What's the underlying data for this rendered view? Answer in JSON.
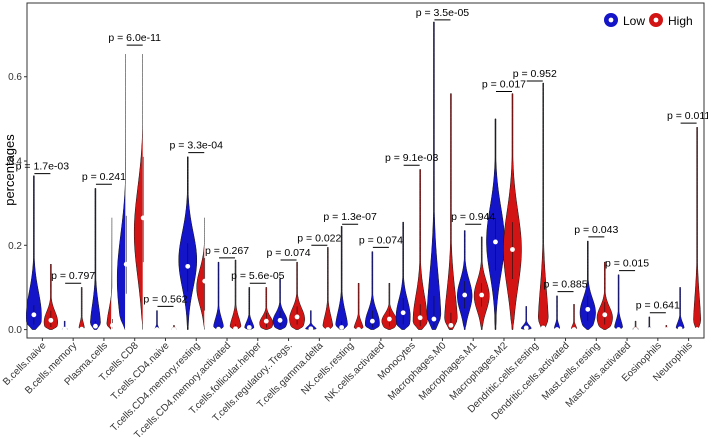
{
  "chart_data": {
    "type": "violin",
    "ylabel": "percentages",
    "xlabel": "",
    "ylim": [
      -0.02,
      0.775
    ],
    "yticks": [
      0.0,
      0.2,
      0.4,
      0.6
    ],
    "ytick_labels": [
      "0.0",
      "0.2",
      "0.4",
      "0.6"
    ],
    "grid": false,
    "legend": {
      "position": "top-right",
      "entries": [
        {
          "name": "Low",
          "color": "#1414c8"
        },
        {
          "name": "High",
          "color": "#d21414"
        }
      ]
    },
    "categories": [
      {
        "name": "B.cells.naive",
        "p": "p = 1.7e-03",
        "bracket": 0.37,
        "low": {
          "max": 0.365,
          "med": 0.035,
          "q1": 0.012,
          "q3": 0.058,
          "mode": 0.032,
          "w": 0.8
        },
        "high": {
          "max": 0.155,
          "med": 0.022,
          "q1": 0.006,
          "q3": 0.045,
          "mode": 0.018,
          "w": 0.72
        }
      },
      {
        "name": "B.cells.memory",
        "p": "p = 0.797",
        "bracket": 0.11,
        "low": {
          "max": 0.02,
          "med": 0.001,
          "q1": 0.0,
          "q3": 0.003,
          "mode": 0.0,
          "w": 0.28
        },
        "high": {
          "max": 0.1,
          "med": 0.001,
          "q1": 0.0,
          "q3": 0.003,
          "mode": 0.0,
          "w": 0.3
        }
      },
      {
        "name": "Plasma.cells",
        "p": "p = 0.241",
        "bracket": 0.345,
        "low": {
          "max": 0.335,
          "med": 0.008,
          "q1": 0.002,
          "q3": 0.02,
          "mode": 0.004,
          "w": 0.55
        },
        "high": {
          "max": 0.27,
          "med": 0.01,
          "q1": 0.003,
          "q3": 0.025,
          "mode": 0.005,
          "w": 0.6
        }
      },
      {
        "name": "T.cells.CD8",
        "p": "p = 6.0e-11",
        "bracket": 0.675,
        "low": {
          "max": 0.665,
          "med": 0.155,
          "q1": 0.085,
          "q3": 0.27,
          "mode": 0.12,
          "w": 0.95
        },
        "high": {
          "max": 0.665,
          "med": 0.265,
          "q1": 0.16,
          "q3": 0.41,
          "mode": 0.23,
          "w": 0.95
        }
      },
      {
        "name": "T.cells.CD4.naive",
        "p": "p = 0.562",
        "bracket": 0.055,
        "low": {
          "max": 0.045,
          "med": 0.0,
          "q1": 0.0,
          "q3": 0.002,
          "mode": 0.0,
          "w": 0.22
        },
        "high": {
          "max": 0.01,
          "med": 0.0,
          "q1": 0.0,
          "q3": 0.001,
          "mode": 0.0,
          "w": 0.25
        }
      },
      {
        "name": "T.cells.CD4.memory.resting",
        "p": "p = 3.3e-04",
        "bracket": 0.42,
        "low": {
          "max": 0.41,
          "med": 0.15,
          "q1": 0.09,
          "q3": 0.205,
          "mode": 0.165,
          "w": 0.95
        },
        "high": {
          "max": 0.27,
          "med": 0.115,
          "q1": 0.045,
          "q3": 0.17,
          "mode": 0.1,
          "w": 0.85
        }
      },
      {
        "name": "T.cells.CD4.memory.activated",
        "p": "p = 0.267",
        "bracket": 0.17,
        "low": {
          "max": 0.16,
          "med": 0.001,
          "q1": 0.0,
          "q3": 0.01,
          "mode": 0.0,
          "w": 0.55
        },
        "high": {
          "max": 0.165,
          "med": 0.002,
          "q1": 0.0,
          "q3": 0.012,
          "mode": 0.001,
          "w": 0.6
        }
      },
      {
        "name": "T.cells.follicular.helper",
        "p": "p = 5.6e-05",
        "bracket": 0.11,
        "low": {
          "max": 0.1,
          "med": 0.005,
          "q1": 0.0,
          "q3": 0.02,
          "mode": 0.002,
          "w": 0.5
        },
        "high": {
          "max": 0.1,
          "med": 0.02,
          "q1": 0.005,
          "q3": 0.04,
          "mode": 0.015,
          "w": 0.7
        }
      },
      {
        "name": "T.cells.regulatory..Tregs.",
        "p": "p = 0.074",
        "bracket": 0.165,
        "low": {
          "max": 0.12,
          "med": 0.022,
          "q1": 0.008,
          "q3": 0.045,
          "mode": 0.02,
          "w": 0.75
        },
        "high": {
          "max": 0.16,
          "med": 0.03,
          "q1": 0.012,
          "q3": 0.055,
          "mode": 0.025,
          "w": 0.8
        }
      },
      {
        "name": "T.cells.gamma.delta",
        "p": "p = 0.022",
        "bracket": 0.2,
        "low": {
          "max": 0.045,
          "med": 0.002,
          "q1": 0.0,
          "q3": 0.008,
          "mode": 0.0,
          "w": 0.6
        },
        "high": {
          "max": 0.195,
          "med": 0.0,
          "q1": 0.0,
          "q3": 0.005,
          "mode": 0.0,
          "w": 0.55
        }
      },
      {
        "name": "NK.cells.resting",
        "p": "p = 1.3e-07",
        "bracket": 0.25,
        "low": {
          "max": 0.245,
          "med": 0.005,
          "q1": 0.0,
          "q3": 0.02,
          "mode": 0.002,
          "w": 0.65
        },
        "high": {
          "max": 0.11,
          "med": 0.0,
          "q1": 0.0,
          "q3": 0.004,
          "mode": 0.0,
          "w": 0.5
        }
      },
      {
        "name": "NK.cells.activated",
        "p": "p = 0.074",
        "bracket": 0.195,
        "low": {
          "max": 0.185,
          "med": 0.02,
          "q1": 0.005,
          "q3": 0.045,
          "mode": 0.015,
          "w": 0.75
        },
        "high": {
          "max": 0.11,
          "med": 0.025,
          "q1": 0.008,
          "q3": 0.05,
          "mode": 0.02,
          "w": 0.8
        }
      },
      {
        "name": "Monocytes",
        "p": "p = 9.1e-03",
        "bracket": 0.39,
        "low": {
          "max": 0.255,
          "med": 0.04,
          "q1": 0.012,
          "q3": 0.075,
          "mode": 0.03,
          "w": 0.75
        },
        "high": {
          "max": 0.38,
          "med": 0.028,
          "q1": 0.008,
          "q3": 0.06,
          "mode": 0.02,
          "w": 0.75
        }
      },
      {
        "name": "Macrophages.M0",
        "p": "p = 3.5e-05",
        "bracket": 0.735,
        "low": {
          "max": 0.73,
          "med": 0.025,
          "q1": 0.005,
          "q3": 0.08,
          "mode": 0.01,
          "w": 0.75
        },
        "high": {
          "max": 0.56,
          "med": 0.01,
          "q1": 0.0,
          "q3": 0.04,
          "mode": 0.003,
          "w": 0.7
        }
      },
      {
        "name": "Macrophages.M1",
        "p": "p = 0.944",
        "bracket": 0.25,
        "low": {
          "max": 0.235,
          "med": 0.082,
          "q1": 0.05,
          "q3": 0.115,
          "mode": 0.08,
          "w": 0.78
        },
        "high": {
          "max": 0.22,
          "med": 0.082,
          "q1": 0.055,
          "q3": 0.11,
          "mode": 0.08,
          "w": 0.8
        }
      },
      {
        "name": "Macrophages.M2",
        "p": "p = 0.017",
        "bracket": 0.565,
        "low": {
          "max": 0.5,
          "med": 0.208,
          "q1": 0.14,
          "q3": 0.265,
          "mode": 0.21,
          "w": 0.95
        },
        "high": {
          "max": 0.56,
          "med": 0.19,
          "q1": 0.12,
          "q3": 0.255,
          "mode": 0.19,
          "w": 0.95
        }
      },
      {
        "name": "Dendritic.cells.resting",
        "p": "p = 0.952",
        "bracket": 0.59,
        "low": {
          "max": 0.055,
          "med": 0.004,
          "q1": 0.0,
          "q3": 0.012,
          "mode": 0.001,
          "w": 0.55
        },
        "high": {
          "max": 0.585,
          "med": 0.004,
          "q1": 0.0,
          "q3": 0.012,
          "mode": 0.001,
          "w": 0.55
        }
      },
      {
        "name": "Dendritic.cells.activated",
        "p": "p = 0.885",
        "bracket": 0.09,
        "low": {
          "max": 0.08,
          "med": 0.0,
          "q1": 0.0,
          "q3": 0.003,
          "mode": 0.0,
          "w": 0.3
        },
        "high": {
          "max": 0.06,
          "med": 0.0,
          "q1": 0.0,
          "q3": 0.003,
          "mode": 0.0,
          "w": 0.3
        }
      },
      {
        "name": "Mast.cells.resting",
        "p": "p = 0.043",
        "bracket": 0.22,
        "low": {
          "max": 0.21,
          "med": 0.048,
          "q1": 0.02,
          "q3": 0.08,
          "mode": 0.04,
          "w": 0.82
        },
        "high": {
          "max": 0.16,
          "med": 0.035,
          "q1": 0.012,
          "q3": 0.065,
          "mode": 0.028,
          "w": 0.82
        }
      },
      {
        "name": "Mast.cells.activated",
        "p": "p = 0.015",
        "bracket": 0.14,
        "low": {
          "max": 0.13,
          "med": 0.0,
          "q1": 0.0,
          "q3": 0.004,
          "mode": 0.0,
          "w": 0.45
        },
        "high": {
          "max": 0.02,
          "med": 0.0,
          "q1": 0.0,
          "q3": 0.002,
          "mode": 0.0,
          "w": 0.3
        }
      },
      {
        "name": "Eosinophils",
        "p": "p = 0.641",
        "bracket": 0.04,
        "low": {
          "max": 0.03,
          "med": 0.0,
          "q1": 0.0,
          "q3": 0.001,
          "mode": 0.0,
          "w": 0.2
        },
        "high": {
          "max": 0.01,
          "med": 0.0,
          "q1": 0.0,
          "q3": 0.001,
          "mode": 0.0,
          "w": 0.2
        }
      },
      {
        "name": "Neutrophils",
        "p": "p = 0.011",
        "bracket": 0.49,
        "low": {
          "max": 0.1,
          "med": 0.002,
          "q1": 0.0,
          "q3": 0.008,
          "mode": 0.0,
          "w": 0.45
        },
        "high": {
          "max": 0.48,
          "med": 0.0,
          "q1": 0.0,
          "q3": 0.004,
          "mode": 0.0,
          "w": 0.4
        }
      }
    ]
  }
}
